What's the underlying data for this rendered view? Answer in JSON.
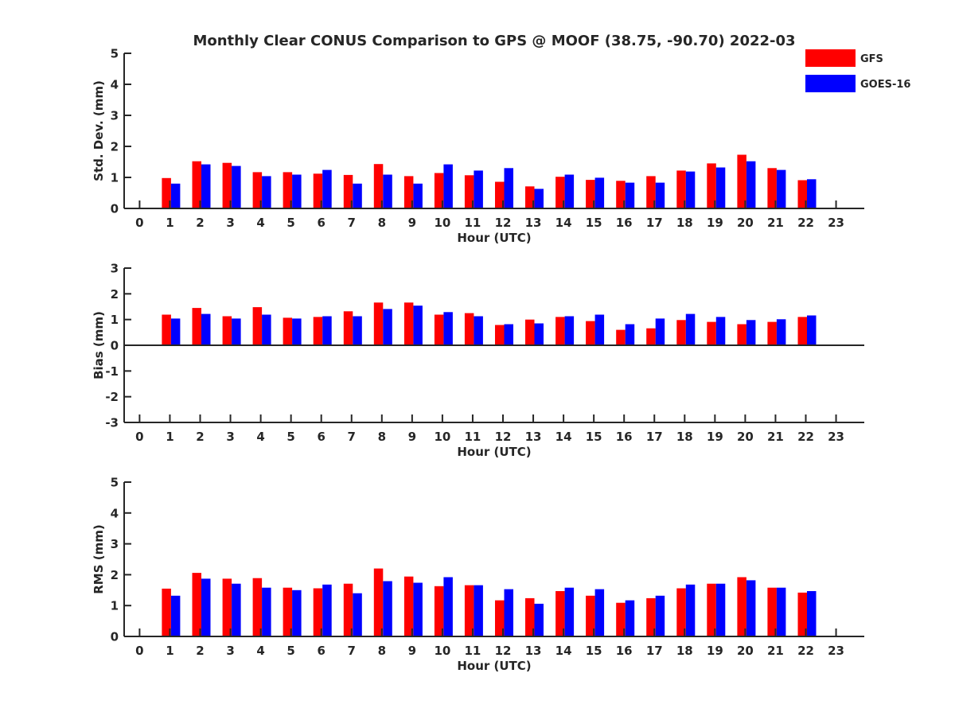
{
  "title": "Monthly Clear CONUS Comparison to GPS @ MOOF (38.75, -90.70) 2022-03",
  "legend": [
    {
      "name": "GFS",
      "color": "#ff0000"
    },
    {
      "name": "GOES-16",
      "color": "#0000ff"
    }
  ],
  "chart_data": [
    {
      "type": "bar",
      "xlabel": "Hour (UTC)",
      "ylabel": "Std. Dev. (mm)",
      "ylim": [
        0,
        5
      ],
      "yticks": [
        0,
        1,
        2,
        3,
        4,
        5
      ],
      "categories": [
        "0",
        "1",
        "2",
        "3",
        "4",
        "5",
        "6",
        "7",
        "8",
        "9",
        "10",
        "11",
        "12",
        "13",
        "14",
        "15",
        "16",
        "17",
        "18",
        "19",
        "20",
        "21",
        "22",
        "23"
      ],
      "series": [
        {
          "name": "GFS",
          "color": "#ff0000",
          "values": [
            null,
            0.98,
            1.52,
            1.47,
            1.17,
            1.17,
            1.12,
            1.08,
            1.43,
            1.04,
            1.14,
            1.07,
            0.86,
            0.71,
            1.02,
            0.92,
            0.89,
            1.04,
            1.22,
            1.45,
            1.73,
            1.3,
            0.91,
            null
          ]
        },
        {
          "name": "GOES-16",
          "color": "#0000ff",
          "values": [
            null,
            0.8,
            1.42,
            1.37,
            1.04,
            1.09,
            1.24,
            0.8,
            1.09,
            0.8,
            1.42,
            1.22,
            1.3,
            0.63,
            1.09,
            0.99,
            0.83,
            0.83,
            1.19,
            1.32,
            1.52,
            1.24,
            0.94,
            null
          ]
        }
      ]
    },
    {
      "type": "bar",
      "xlabel": "Hour (UTC)",
      "ylabel": "Bias (mm)",
      "ylim": [
        -3,
        3
      ],
      "yticks": [
        -3,
        -2,
        -1,
        0,
        1,
        2,
        3
      ],
      "categories": [
        "0",
        "1",
        "2",
        "3",
        "4",
        "5",
        "6",
        "7",
        "8",
        "9",
        "10",
        "11",
        "12",
        "13",
        "14",
        "15",
        "16",
        "17",
        "18",
        "19",
        "20",
        "21",
        "22",
        "23"
      ],
      "series": [
        {
          "name": "GFS",
          "color": "#ff0000",
          "values": [
            null,
            1.19,
            1.45,
            1.13,
            1.48,
            1.07,
            1.1,
            1.32,
            1.66,
            1.66,
            1.19,
            1.25,
            0.79,
            1.0,
            1.1,
            0.94,
            0.6,
            0.66,
            0.98,
            0.91,
            0.82,
            0.91,
            1.1,
            null
          ]
        },
        {
          "name": "GOES-16",
          "color": "#0000ff",
          "values": [
            null,
            1.04,
            1.22,
            1.04,
            1.19,
            1.04,
            1.13,
            1.13,
            1.41,
            1.54,
            1.29,
            1.13,
            0.82,
            0.85,
            1.13,
            1.19,
            0.82,
            1.04,
            1.22,
            1.1,
            0.98,
            1.01,
            1.16,
            null
          ]
        }
      ]
    },
    {
      "type": "bar",
      "xlabel": "Hour (UTC)",
      "ylabel": "RMS (mm)",
      "ylim": [
        0,
        5
      ],
      "yticks": [
        0,
        1,
        2,
        3,
        4,
        5
      ],
      "categories": [
        "0",
        "1",
        "2",
        "3",
        "4",
        "5",
        "6",
        "7",
        "8",
        "9",
        "10",
        "11",
        "12",
        "13",
        "14",
        "15",
        "16",
        "17",
        "18",
        "19",
        "20",
        "21",
        "22",
        "23"
      ],
      "series": [
        {
          "name": "GFS",
          "color": "#ff0000",
          "values": [
            null,
            1.55,
            2.06,
            1.87,
            1.89,
            1.58,
            1.56,
            1.71,
            2.2,
            1.94,
            1.63,
            1.66,
            1.17,
            1.24,
            1.47,
            1.32,
            1.09,
            1.24,
            1.56,
            1.71,
            1.92,
            1.58,
            1.42,
            null
          ]
        },
        {
          "name": "GOES-16",
          "color": "#0000ff",
          "values": [
            null,
            1.32,
            1.87,
            1.71,
            1.58,
            1.5,
            1.68,
            1.4,
            1.79,
            1.74,
            1.92,
            1.66,
            1.53,
            1.06,
            1.58,
            1.53,
            1.17,
            1.32,
            1.68,
            1.71,
            1.82,
            1.58,
            1.47,
            null
          ]
        }
      ]
    }
  ]
}
